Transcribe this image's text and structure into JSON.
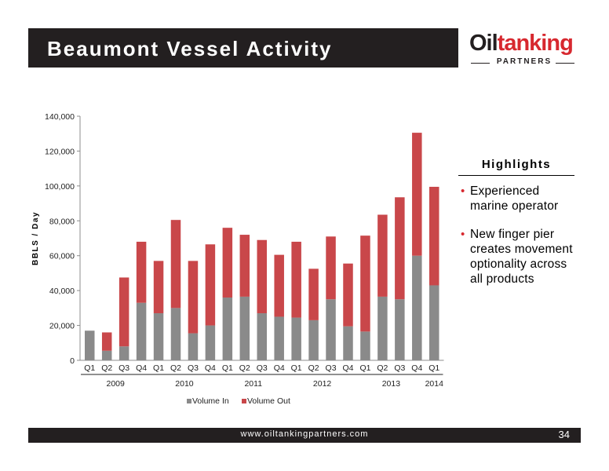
{
  "slide": {
    "title": "Beaumont Vessel Activity",
    "footer_url": "www.oiltankingpartners.com",
    "page_number": "34"
  },
  "logo": {
    "brand_part1": "Oil",
    "brand_part2": "tanking",
    "sub": "PARTNERS"
  },
  "highlights": {
    "title": "Highlights",
    "items": [
      "Experienced marine operator",
      "New finger pier creates movement optionality across all products"
    ]
  },
  "colors": {
    "volume_in": "#8a8a8a",
    "volume_out": "#c9474a",
    "accent_red": "#d7282f",
    "dark_bar": "#231f20"
  },
  "chart_data": {
    "type": "bar",
    "stacked": true,
    "ylabel": "BBLS / Day",
    "ylim": [
      0,
      140000
    ],
    "yticks": [
      "0",
      "20,000",
      "40,000",
      "60,000",
      "80,000",
      "100,000",
      "120,000",
      "140,000"
    ],
    "categories": [
      "Q1",
      "Q2",
      "Q3",
      "Q4",
      "Q1",
      "Q2",
      "Q3",
      "Q4",
      "Q1",
      "Q2",
      "Q3",
      "Q4",
      "Q1",
      "Q2",
      "Q3",
      "Q4",
      "Q1",
      "Q2",
      "Q3",
      "Q4",
      "Q1"
    ],
    "years": [
      {
        "label": "2009",
        "count": 4
      },
      {
        "label": "2010",
        "count": 4
      },
      {
        "label": "2011",
        "count": 4
      },
      {
        "label": "2012",
        "count": 4
      },
      {
        "label": "2013",
        "count": 4
      },
      {
        "label": "2014",
        "count": 1
      }
    ],
    "series": [
      {
        "name": "Volume In",
        "values": [
          17000,
          5500,
          8000,
          33000,
          27000,
          30000,
          15500,
          20000,
          36000,
          36500,
          27000,
          25000,
          24500,
          23000,
          35000,
          19500,
          16500,
          36500,
          35000,
          60000,
          43000
        ]
      },
      {
        "name": "Volume Out",
        "values": [
          0,
          10500,
          39500,
          35000,
          30000,
          50500,
          41500,
          46500,
          40000,
          35500,
          42000,
          35500,
          43500,
          29500,
          36000,
          36000,
          55000,
          47000,
          58500,
          70500,
          56500
        ]
      }
    ],
    "legend_position": "bottom",
    "grid": false
  }
}
